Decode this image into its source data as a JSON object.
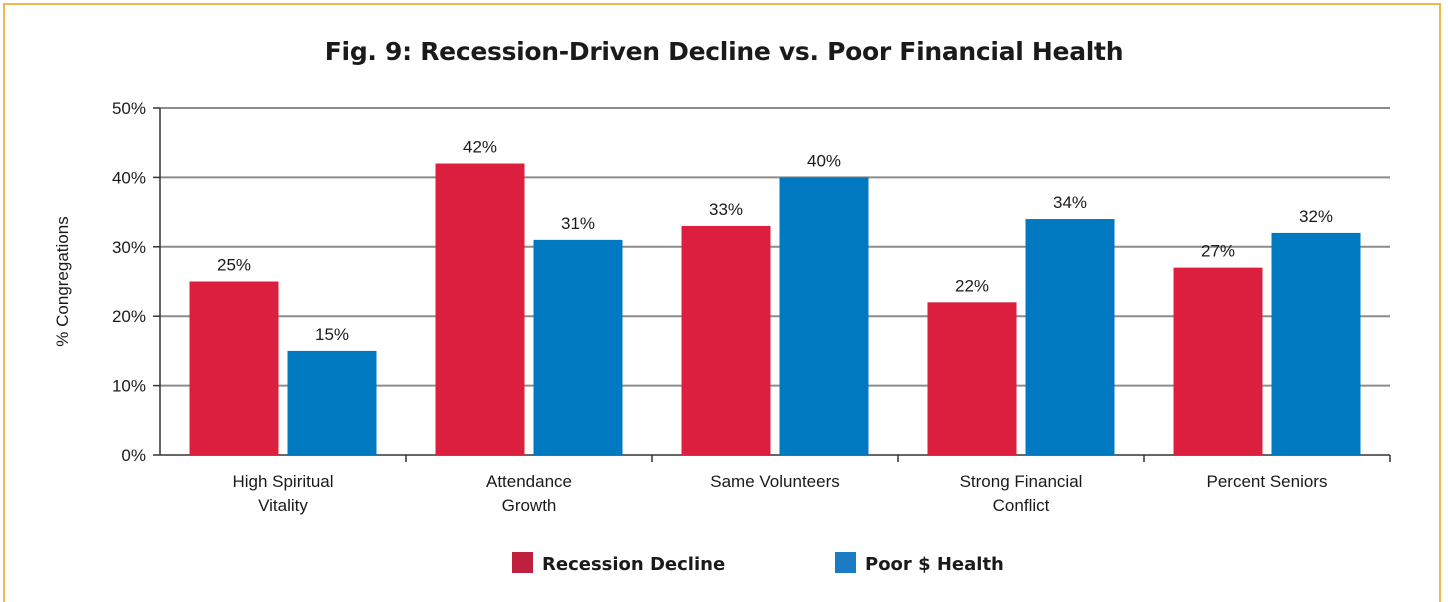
{
  "chart_data": {
    "type": "bar",
    "title": "Fig. 9:  Recession-Driven Decline vs. Poor Financial Health",
    "ylabel": "% Congregations",
    "xlabel": "",
    "ylim": [
      0,
      50
    ],
    "yticks": [
      "0%",
      "10%",
      "20%",
      "30%",
      "40%",
      "50%"
    ],
    "categories": [
      [
        "High Spiritual",
        "Vitality"
      ],
      [
        "Attendance",
        "Growth"
      ],
      [
        "Same Volunteers"
      ],
      [
        "Strong Financial",
        "Conflict"
      ],
      [
        "Percent Seniors"
      ]
    ],
    "series": [
      {
        "name": "Recession Decline",
        "color": "#dc1f3e",
        "values": [
          25,
          42,
          33,
          22,
          27
        ],
        "labels": [
          "25%",
          "42%",
          "33%",
          "22%",
          "27%"
        ]
      },
      {
        "name": "Poor $ Health",
        "color": "#0079c1",
        "values": [
          15,
          31,
          40,
          34,
          32
        ],
        "labels": [
          "15%",
          "31%",
          "40%",
          "34%",
          "32%"
        ]
      }
    ],
    "grid": true,
    "legend": "bottom-center",
    "legend_swatches": [
      "#c0203f",
      "#1b7cc4"
    ]
  }
}
